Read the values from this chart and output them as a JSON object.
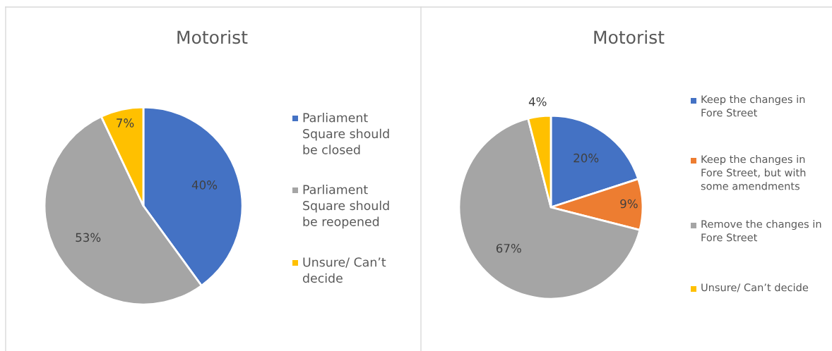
{
  "chart_data": [
    {
      "type": "pie",
      "title": "Motorist",
      "categories": [
        "Parliament Square should be closed",
        "Parliament Square should be reopened",
        "Unsure/ Can’t decide"
      ],
      "values": [
        40,
        53,
        7
      ],
      "colors": [
        "#4472c4",
        "#a5a5a5",
        "#ffc000"
      ],
      "value_labels": [
        "40%",
        "53%",
        "7%"
      ],
      "legend": "right"
    },
    {
      "type": "pie",
      "title": "Motorist",
      "categories": [
        "Keep the changes in Fore Street",
        "Keep the changes in Fore Street, but with some amendments",
        "Remove the changes in Fore Street",
        "Unsure/ Can’t decide"
      ],
      "values": [
        20,
        9,
        67,
        4
      ],
      "colors": [
        "#4472c4",
        "#ed7d31",
        "#a5a5a5",
        "#ffc000"
      ],
      "value_labels": [
        "20%",
        "9%",
        "67%",
        "4%"
      ],
      "legend": "right"
    }
  ]
}
